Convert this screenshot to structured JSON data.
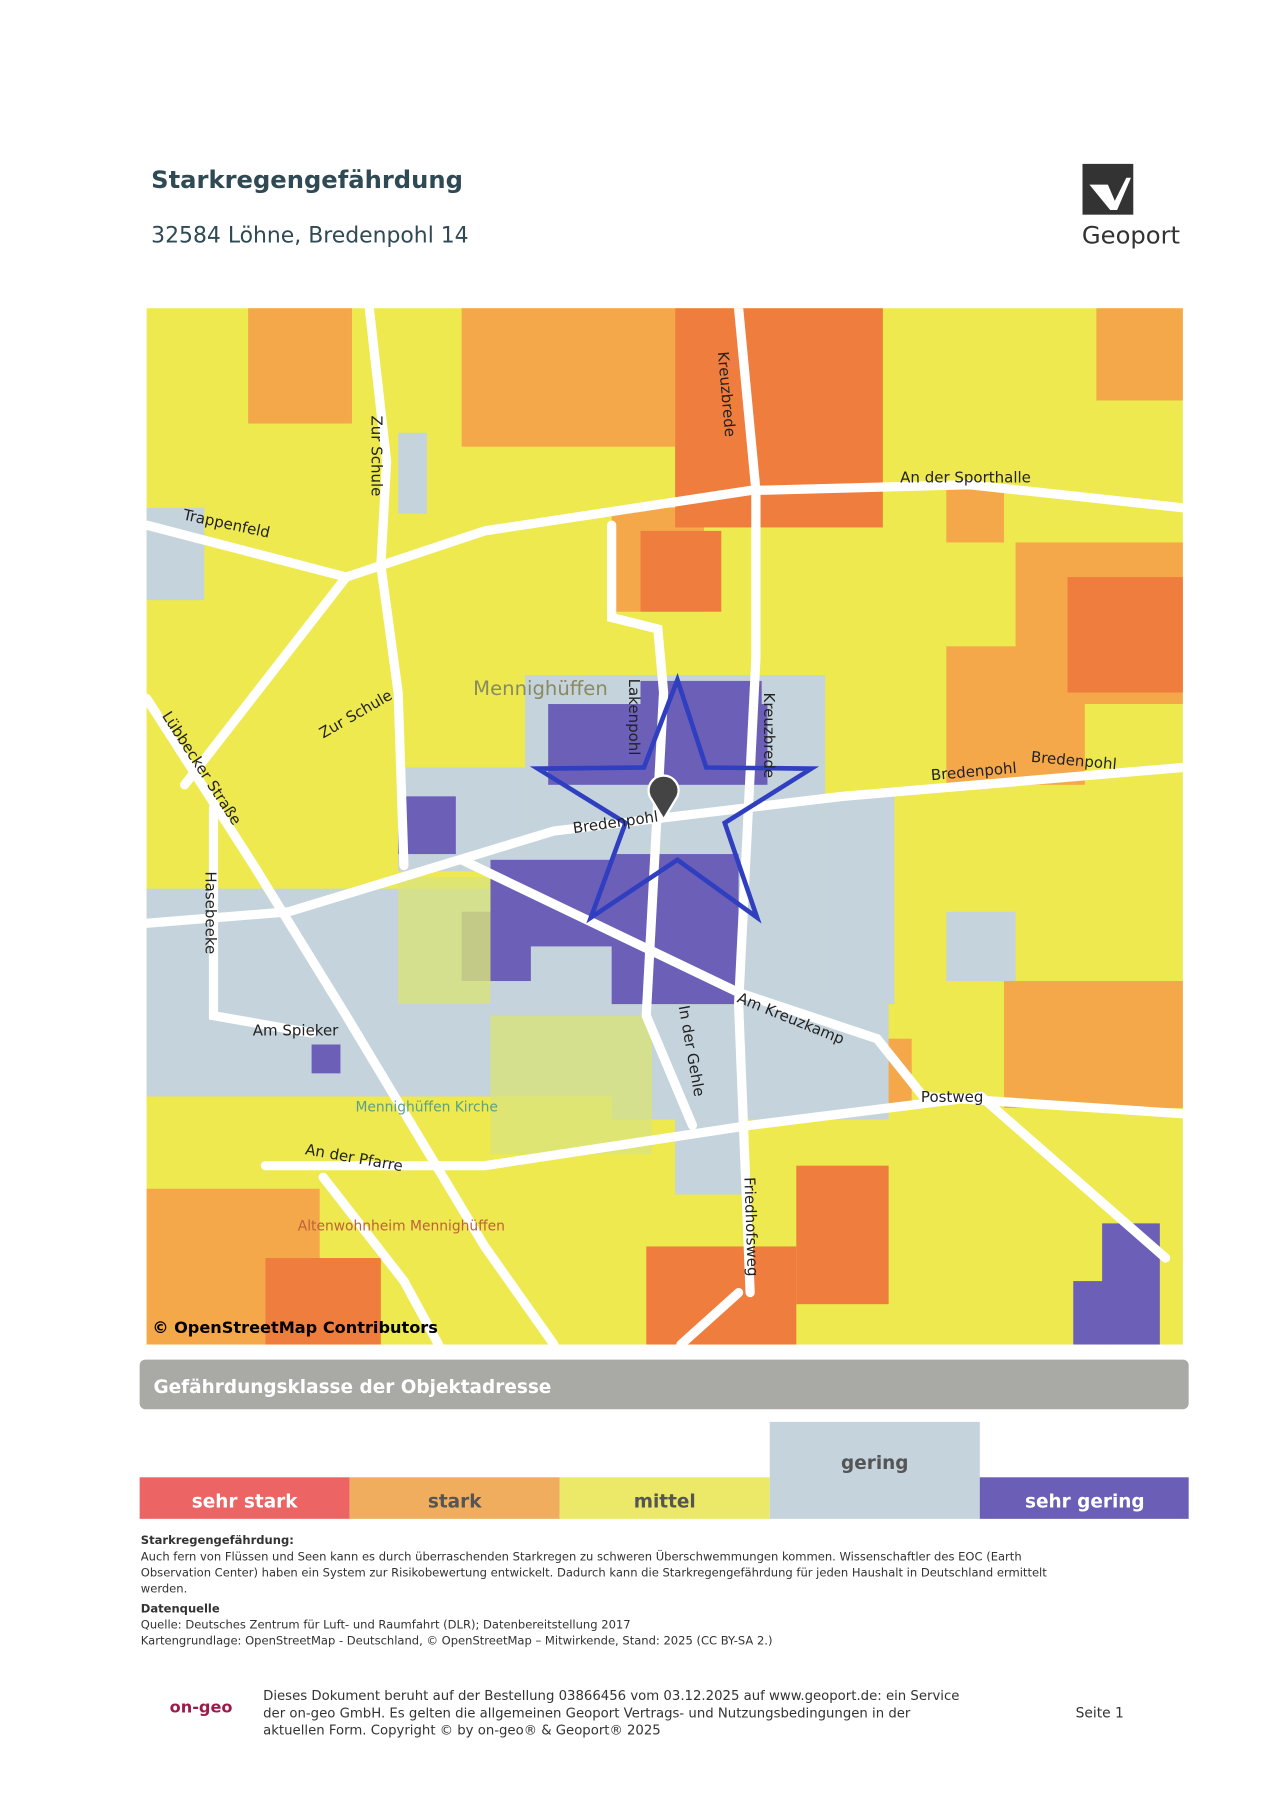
{
  "header": {
    "title": "Starkregengefährdung",
    "address": "32584 Löhne, Bredenpohl 14",
    "logo_text": "Geoport"
  },
  "map": {
    "labels": [
      "Zur Schule",
      "Kreuzbrede",
      "An der Sporthalle",
      "Trappenfeld",
      "Mennighüffen",
      "Zur Schule",
      "Lübbecker Straße",
      "Lakenpohl",
      "Kreuzbrede",
      "Bredenpohl",
      "Bredenpohl",
      "Bredenpohl",
      "Hasebeeke",
      "Am Kreuzkamp",
      "In der Gehle",
      "Am Spieker",
      "Postweg",
      "An der Pfarre",
      "Friedhofsweg",
      "Mennighüffen Kirche",
      "Altenwohnheim Mennighüffen"
    ],
    "attribution": "© OpenStreetMap Contributors"
  },
  "legend": {
    "title": "Gefährdungsklasse der Objektadresse",
    "classes": [
      "sehr stark",
      "stark",
      "mittel",
      "gering",
      "sehr gering"
    ]
  },
  "info": {
    "heading": "Starkregengefährdung:",
    "body": [
      "Auch fern von Flüssen und Seen kann es durch überraschenden Starkregen zu schweren Überschwemmungen kommen. Wissenschaftler des EOC (Earth",
      "Observation Center) haben ein System zur Risikobewertung entwickelt. Dadurch kann die Starkregengefährdung für jeden Haushalt in Deutschland ermittelt",
      "werden."
    ],
    "source_heading": "Datenquelle",
    "source_lines": [
      "Quelle: Deutsches Zentrum für Luft- und Raumfahrt (DLR); Datenbereitstellung 2017",
      "Kartengrundlage: OpenStreetMap - Deutschland, © OpenStreetMap – Mitwirkende, Stand: 2025 (CC BY-SA 2.)"
    ]
  },
  "footer": {
    "logo": "on-geo",
    "lines": [
      "Dieses Dokument beruht auf der Bestellung 03866456 vom 03.12.2025 auf www.geoport.de: ein Service",
      "der on-geo GmbH. Es gelten die allgemeinen Geoport Vertrags- und Nutzungsbedingungen in der",
      "aktuellen Form. Copyright © by on-geo® & Geoport® 2025"
    ],
    "page": "Seite 1"
  }
}
